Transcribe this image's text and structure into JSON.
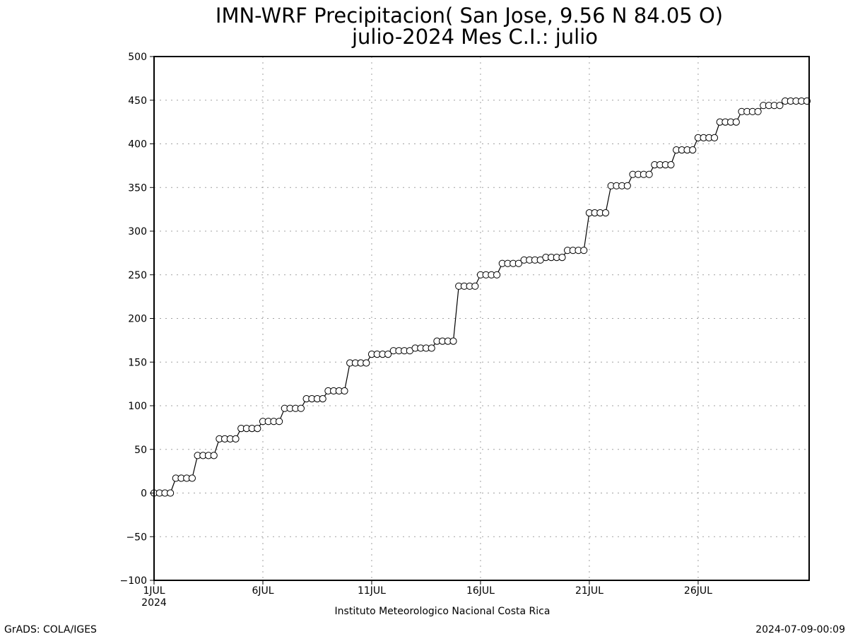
{
  "chart_data": {
    "type": "line",
    "title": "IMN-WRF  Precipitacion( San Jose, 9.56  N 84.05  O)",
    "subtitle": "julio-2024 Mes C.I.: julio",
    "xlabel": "Instituto Meteorologico Nacional Costa Rica",
    "ylabel": "",
    "ylim": [
      -100,
      500
    ],
    "yticks": [
      500,
      450,
      400,
      350,
      300,
      250,
      200,
      150,
      100,
      50,
      0,
      -50,
      -100
    ],
    "xlim": [
      1,
      31
    ],
    "xticks": [
      {
        "day": 1,
        "label": "1JUL",
        "sublabel": "2024"
      },
      {
        "day": 6,
        "label": "6JUL",
        "sublabel": ""
      },
      {
        "day": 11,
        "label": "11JUL",
        "sublabel": ""
      },
      {
        "day": 16,
        "label": "16JUL",
        "sublabel": ""
      },
      {
        "day": 21,
        "label": "21JUL",
        "sublabel": ""
      },
      {
        "day": 26,
        "label": "26JUL",
        "sublabel": ""
      }
    ],
    "grid": true,
    "marker": "open-circle",
    "steps_per_day": 4,
    "daily_levels": [
      0,
      17,
      43,
      62,
      74,
      82,
      97,
      108,
      117,
      149,
      159,
      163,
      166,
      174,
      237,
      250,
      263,
      267,
      270,
      278,
      321,
      352,
      365,
      376,
      393,
      407,
      425,
      437,
      444,
      449
    ],
    "line_color": "#000000",
    "grid_color": "#a0a0a0"
  },
  "footer": {
    "left": "GrADS: COLA/IGES",
    "right": "2024-07-09-00:09"
  }
}
